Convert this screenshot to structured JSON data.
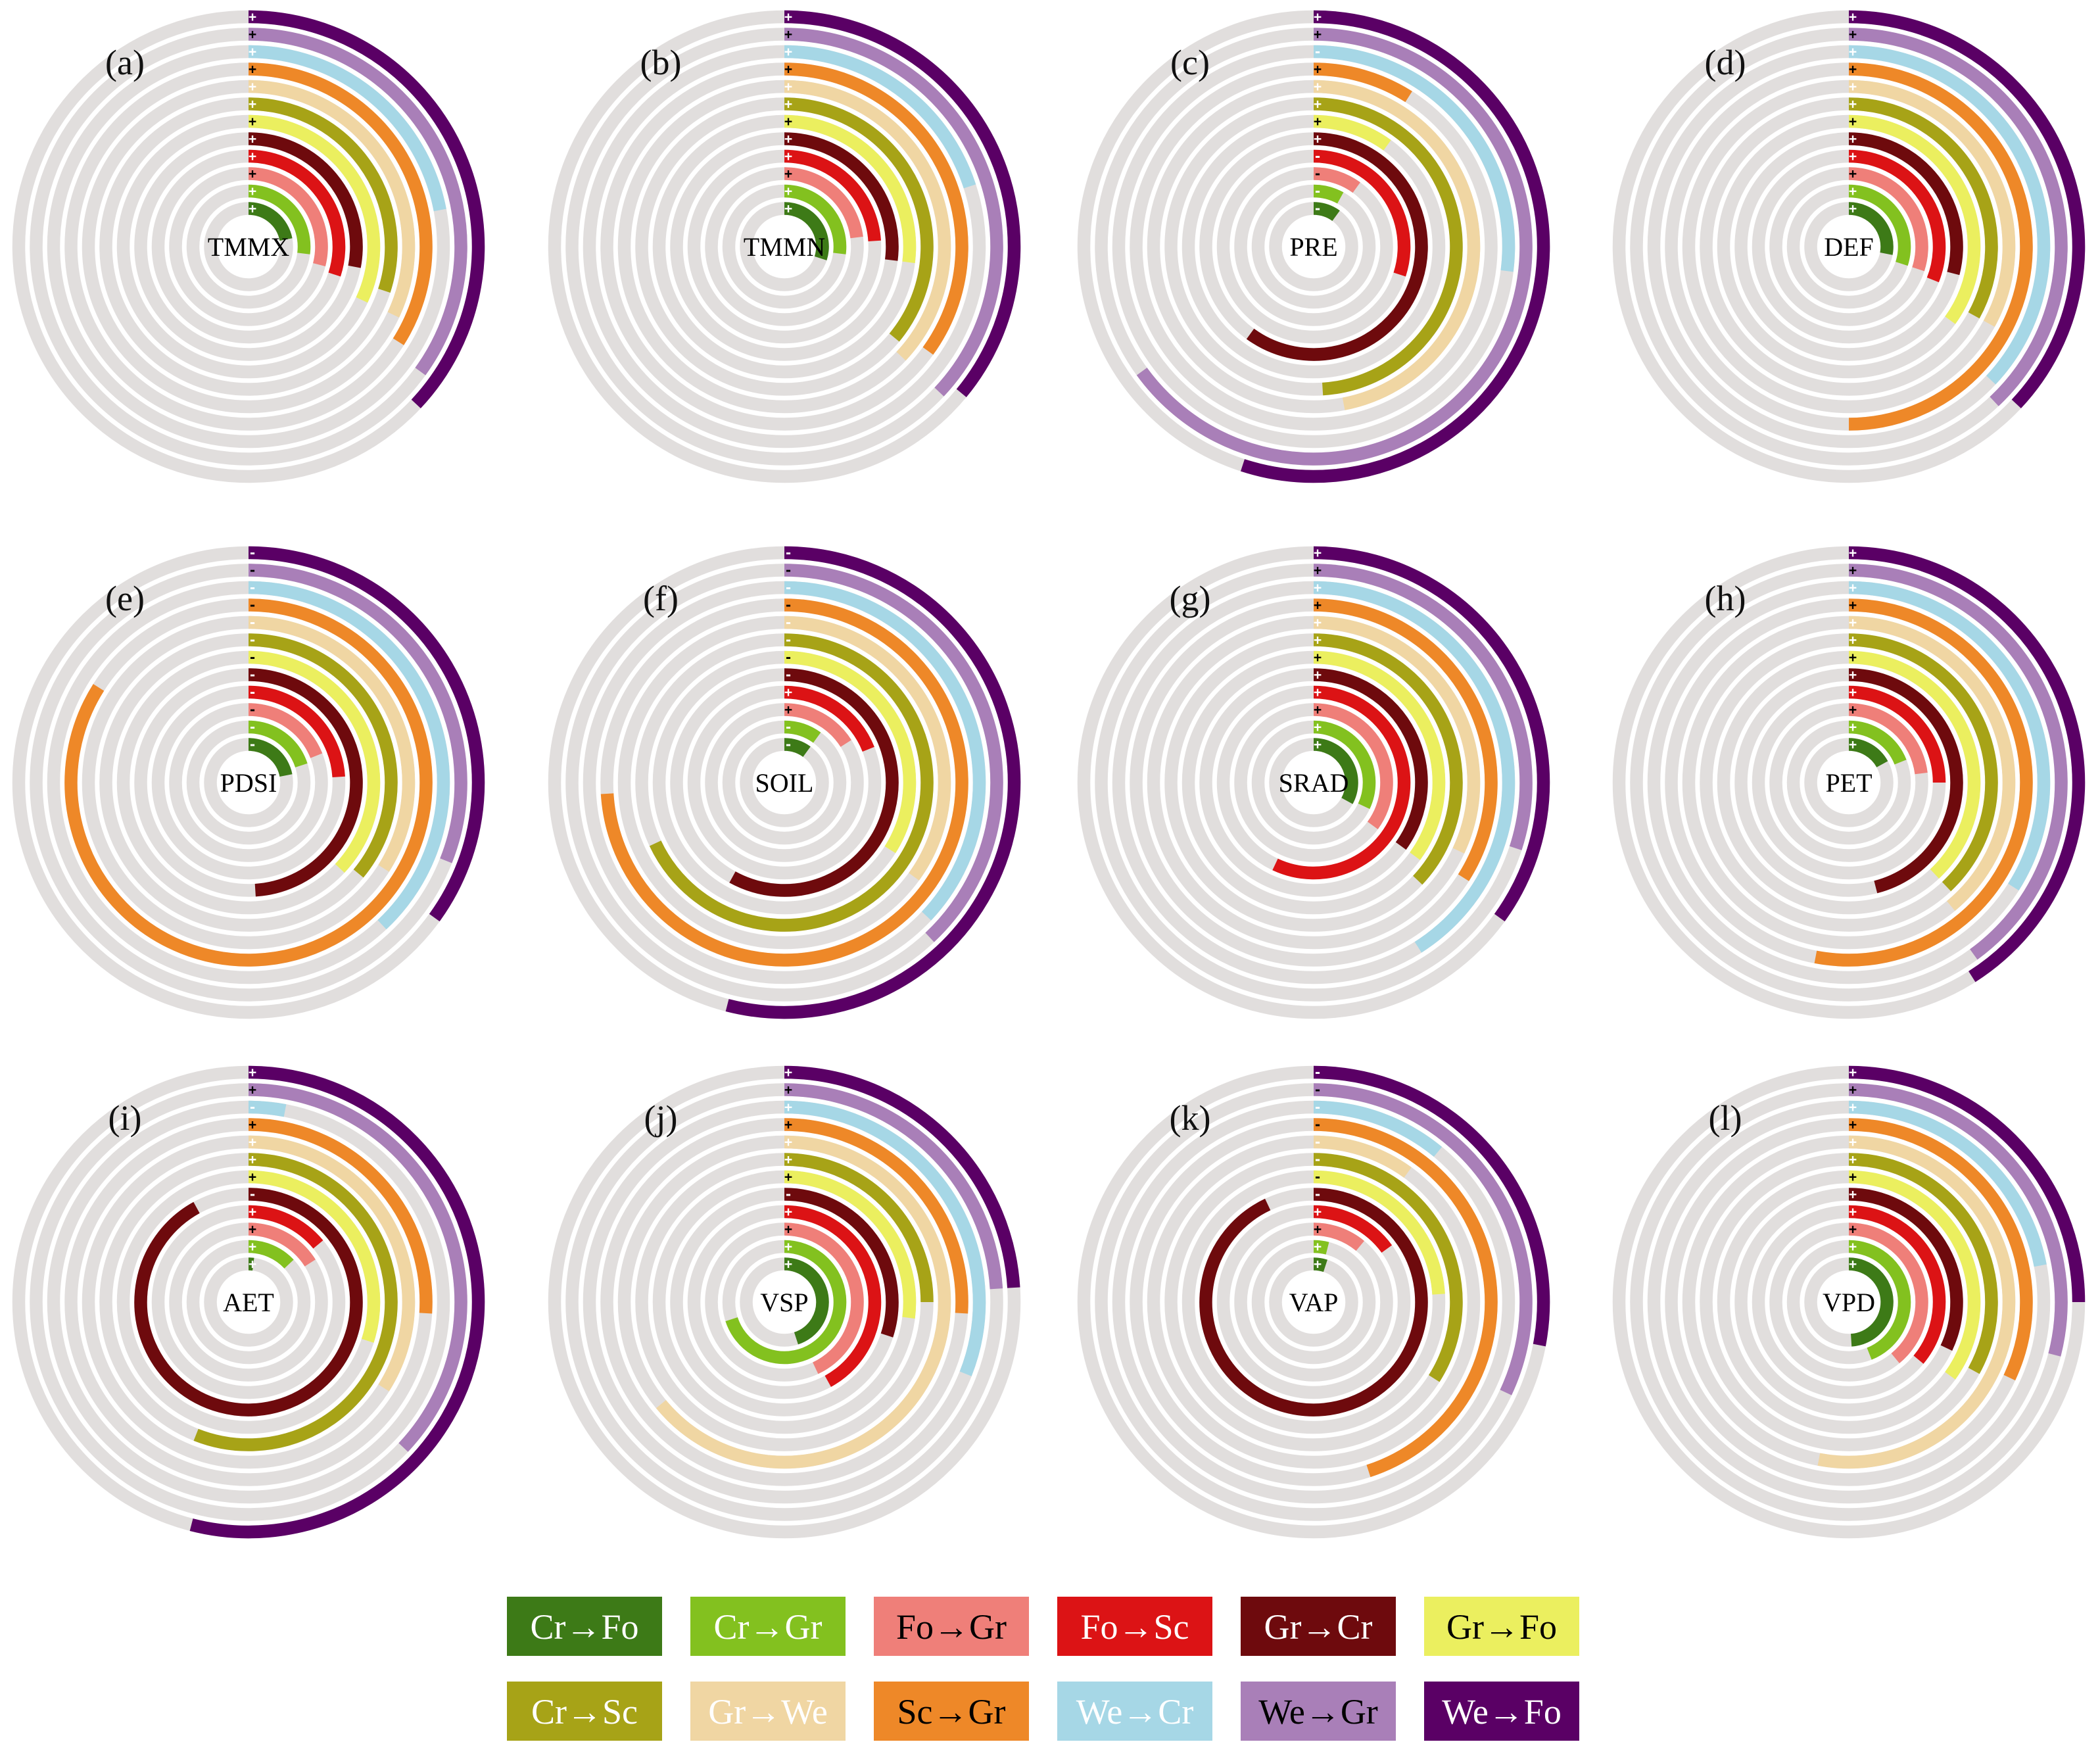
{
  "chart_data": {
    "type": "radial-bar",
    "transitions": [
      {
        "key": "Cr→Fo",
        "color": "#3d7a17",
        "text_color": "#ffffff"
      },
      {
        "key": "Cr→Gr",
        "color": "#83c11f",
        "text_color": "#ffffff"
      },
      {
        "key": "Fo→Gr",
        "color": "#ef7f79",
        "text_color": "#000000"
      },
      {
        "key": "Fo→Sc",
        "color": "#dc1315",
        "text_color": "#ffffff"
      },
      {
        "key": "Gr→Cr",
        "color": "#6e0a0d",
        "text_color": "#ffffff"
      },
      {
        "key": "Gr→Fo",
        "color": "#ebef5f",
        "text_color": "#000000"
      },
      {
        "key": "Cr→Sc",
        "color": "#a7a317",
        "text_color": "#ffffff"
      },
      {
        "key": "Gr→We",
        "color": "#f0d6a3",
        "text_color": "#ffffff"
      },
      {
        "key": "Sc→Gr",
        "color": "#ee8828",
        "text_color": "#000000"
      },
      {
        "key": "We→Cr",
        "color": "#a6d7e6",
        "text_color": "#ffffff"
      },
      {
        "key": "We→Gr",
        "color": "#a97fb8",
        "text_color": "#000000"
      },
      {
        "key": "We→Fo",
        "color": "#5a0065",
        "text_color": "#ffffff"
      }
    ],
    "panels": [
      {
        "label": "(a)",
        "variable": "TMMX",
        "values": [
          0.22,
          0.27,
          0.29,
          0.3,
          0.28,
          0.32,
          0.3,
          0.32,
          0.34,
          0.22,
          0.35,
          0.37
        ],
        "signs": [
          "+",
          "+",
          "+",
          "+",
          "+",
          "+",
          "+",
          "+",
          "+",
          "+",
          "+",
          "+"
        ]
      },
      {
        "label": "(b)",
        "variable": "TMMN",
        "values": [
          0.3,
          0.27,
          0.23,
          0.24,
          0.27,
          0.27,
          0.36,
          0.37,
          0.35,
          0.2,
          0.37,
          0.36
        ],
        "signs": [
          "+",
          "+",
          "+",
          "+",
          "+",
          "+",
          "+",
          "+",
          "+",
          "+",
          "+",
          "+"
        ]
      },
      {
        "label": "(c)",
        "variable": "PRE",
        "values": [
          0.1,
          0.08,
          0.1,
          0.3,
          0.6,
          0.1,
          0.49,
          0.47,
          0.09,
          0.27,
          0.65,
          0.55
        ],
        "signs": [
          "-",
          "-",
          "-",
          "-",
          "+",
          "+",
          "+",
          "+",
          "+",
          "-",
          "+",
          "+"
        ]
      },
      {
        "label": "(d)",
        "variable": "DEF",
        "values": [
          0.28,
          0.3,
          0.3,
          0.31,
          0.29,
          0.35,
          0.33,
          0.33,
          0.5,
          0.37,
          0.38,
          0.37
        ],
        "signs": [
          "+",
          "+",
          "+",
          "+",
          "+",
          "+",
          "+",
          "+",
          "+",
          "+",
          "+",
          "+"
        ]
      },
      {
        "label": "(e)",
        "variable": "PDSI",
        "values": [
          0.22,
          0.2,
          0.19,
          0.24,
          0.49,
          0.37,
          0.36,
          0.34,
          0.84,
          0.38,
          0.31,
          0.35
        ],
        "signs": [
          "-",
          "-",
          "-",
          "-",
          "-",
          "-",
          "-",
          "-",
          "-",
          "-",
          "-",
          "-"
        ]
      },
      {
        "label": "(f)",
        "variable": "SOIL",
        "values": [
          0.1,
          0.1,
          0.16,
          0.19,
          0.58,
          0.34,
          0.68,
          0.35,
          0.74,
          0.37,
          0.38,
          0.54
        ],
        "signs": [
          "-",
          "-",
          "+",
          "+",
          "-",
          "-",
          "-",
          "-",
          "-",
          "-",
          "-",
          "-"
        ]
      },
      {
        "label": "(g)",
        "variable": "SRAD",
        "values": [
          0.33,
          0.32,
          0.35,
          0.57,
          0.35,
          0.35,
          0.37,
          0.32,
          0.34,
          0.41,
          0.3,
          0.35
        ],
        "signs": [
          "+",
          "+",
          "+",
          "+",
          "+",
          "+",
          "+",
          "+",
          "+",
          "+",
          "+",
          "+"
        ]
      },
      {
        "label": "(h)",
        "variable": "PET",
        "values": [
          0.17,
          0.19,
          0.23,
          0.25,
          0.46,
          0.38,
          0.38,
          0.39,
          0.53,
          0.34,
          0.4,
          0.41
        ],
        "signs": [
          "+",
          "+",
          "+",
          "+",
          "+",
          "+",
          "+",
          "+",
          "+",
          "+",
          "+",
          "+"
        ]
      },
      {
        "label": "(i)",
        "variable": "AET",
        "values": [
          0.02,
          0.13,
          0.16,
          0.14,
          0.92,
          0.3,
          0.56,
          0.34,
          0.26,
          0.03,
          0.37,
          0.54
        ],
        "signs": [
          "+",
          "+",
          "+",
          "+",
          "-",
          "+",
          "+",
          "+",
          "+",
          "-",
          "+",
          "+"
        ]
      },
      {
        "label": "(j)",
        "variable": "VSP",
        "values": [
          0.45,
          0.7,
          0.43,
          0.42,
          0.3,
          0.27,
          0.25,
          0.64,
          0.26,
          0.31,
          0.24,
          0.24
        ],
        "signs": [
          "+",
          "+",
          "+",
          "+",
          "-",
          "+",
          "+",
          "+",
          "+",
          "+",
          "+",
          "+"
        ]
      },
      {
        "label": "(k)",
        "variable": "VAP",
        "values": [
          0.05,
          0.04,
          0.11,
          0.15,
          0.93,
          0.24,
          0.34,
          0.1,
          0.45,
          0.11,
          0.32,
          0.28
        ],
        "signs": [
          "+",
          "+",
          "+",
          "+",
          "-",
          "-",
          "-",
          "-",
          "-",
          "-",
          "-",
          "-"
        ]
      },
      {
        "label": "(l)",
        "variable": "VPD",
        "values": [
          0.49,
          0.44,
          0.39,
          0.36,
          0.32,
          0.35,
          0.33,
          0.53,
          0.32,
          0.22,
          0.29,
          0.25
        ],
        "signs": [
          "+",
          "+",
          "+",
          "+",
          "+",
          "+",
          "+",
          "+",
          "+",
          "+",
          "+",
          "+"
        ]
      }
    ]
  }
}
